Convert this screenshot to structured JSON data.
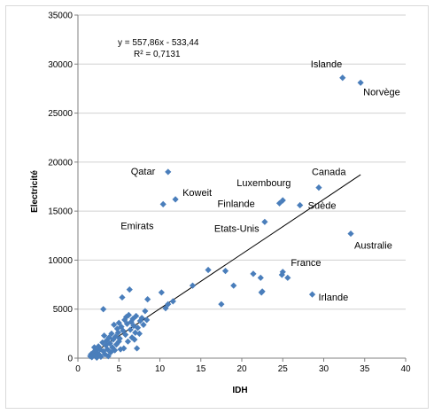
{
  "chart_data": {
    "type": "scatter",
    "title": "",
    "xlabel": "IDH",
    "ylabel": "Electricité",
    "xlim": [
      0,
      40
    ],
    "ylim": [
      0,
      35000
    ],
    "x_ticks": [
      "0",
      "5",
      "10",
      "15",
      "20",
      "25",
      "30",
      "35",
      "40"
    ],
    "y_ticks": [
      "0",
      "5000",
      "10000",
      "15000",
      "20000",
      "25000",
      "30000",
      "35000"
    ],
    "grid": "horizontal",
    "legend": "none",
    "marker_color": "#4a7ebb",
    "trendline": {
      "equation": "y = 557,86x - 533,44",
      "r2": "R² = 0,7131",
      "slope": 557.86,
      "intercept": -533.44,
      "x_range": [
        1.5,
        34.5
      ],
      "color": "#000000"
    },
    "labeled_points": [
      {
        "label": "Islande",
        "x": 32.3,
        "y": 28600
      },
      {
        "label": "Norvège",
        "x": 34.5,
        "y": 28100
      },
      {
        "label": "Qatar",
        "x": 11.0,
        "y": 19000
      },
      {
        "label": "Koweit",
        "x": 11.9,
        "y": 16200
      },
      {
        "label": "Emirats",
        "x": 10.4,
        "y": 15700
      },
      {
        "label": "Luxembourg",
        "x": 25.0,
        "y": 16100
      },
      {
        "label": "Finlande",
        "x": 24.6,
        "y": 15800
      },
      {
        "label": "Canada",
        "x": 29.4,
        "y": 17400
      },
      {
        "label": "Suède",
        "x": 27.1,
        "y": 15600
      },
      {
        "label": "Etats-Unis",
        "x": 22.8,
        "y": 13900
      },
      {
        "label": "Australie",
        "x": 33.3,
        "y": 12700
      },
      {
        "label": "France",
        "x": 24.9,
        "y": 8500
      },
      {
        "label": "Irlande",
        "x": 28.6,
        "y": 6500
      }
    ],
    "points": [
      [
        1.5,
        200
      ],
      [
        1.6,
        400
      ],
      [
        1.7,
        100
      ],
      [
        1.8,
        300
      ],
      [
        1.9,
        600
      ],
      [
        2.0,
        1100
      ],
      [
        2.1,
        250
      ],
      [
        2.2,
        800
      ],
      [
        2.3,
        50
      ],
      [
        2.4,
        500
      ],
      [
        2.5,
        1200
      ],
      [
        2.6,
        350
      ],
      [
        2.7,
        900
      ],
      [
        2.8,
        150
      ],
      [
        3.0,
        1600
      ],
      [
        3.1,
        700
      ],
      [
        3.2,
        2300
      ],
      [
        3.1,
        5000
      ],
      [
        3.3,
        400
      ],
      [
        3.4,
        1300
      ],
      [
        3.5,
        1800
      ],
      [
        3.6,
        900
      ],
      [
        3.7,
        200
      ],
      [
        3.8,
        2100
      ],
      [
        3.9,
        1500
      ],
      [
        4.0,
        600
      ],
      [
        4.1,
        2500
      ],
      [
        4.2,
        1100
      ],
      [
        4.3,
        1900
      ],
      [
        4.4,
        3400
      ],
      [
        4.5,
        800
      ],
      [
        4.6,
        2200
      ],
      [
        4.7,
        1400
      ],
      [
        4.8,
        3000
      ],
      [
        4.9,
        2600
      ],
      [
        5.0,
        1700
      ],
      [
        5.0,
        3600
      ],
      [
        5.1,
        2000
      ],
      [
        5.2,
        900
      ],
      [
        5.3,
        3200
      ],
      [
        5.4,
        6200
      ],
      [
        5.5,
        2800
      ],
      [
        5.6,
        1000
      ],
      [
        5.7,
        3900
      ],
      [
        5.8,
        2400
      ],
      [
        5.9,
        4200
      ],
      [
        6.0,
        3500
      ],
      [
        6.1,
        1700
      ],
      [
        6.2,
        4400
      ],
      [
        6.3,
        7000
      ],
      [
        6.4,
        2900
      ],
      [
        6.5,
        3700
      ],
      [
        6.6,
        2100
      ],
      [
        6.7,
        4000
      ],
      [
        6.8,
        3300
      ],
      [
        6.9,
        1900
      ],
      [
        7.0,
        2600
      ],
      [
        7.1,
        4300
      ],
      [
        7.2,
        1000
      ],
      [
        7.3,
        3100
      ],
      [
        7.5,
        2500
      ],
      [
        7.6,
        3800
      ],
      [
        7.8,
        4100
      ],
      [
        8.0,
        3400
      ],
      [
        8.2,
        4800
      ],
      [
        8.4,
        3900
      ],
      [
        8.5,
        6000
      ],
      [
        10.2,
        6700
      ],
      [
        10.7,
        5100
      ],
      [
        11.0,
        5500
      ],
      [
        11.6,
        5800
      ],
      [
        14.0,
        7400
      ],
      [
        15.9,
        9000
      ],
      [
        17.5,
        5500
      ],
      [
        18.0,
        8900
      ],
      [
        19.0,
        7400
      ],
      [
        21.4,
        8600
      ],
      [
        22.3,
        8200
      ],
      [
        22.4,
        6700
      ],
      [
        22.5,
        6800
      ],
      [
        25.0,
        8800
      ],
      [
        25.6,
        8200
      ]
    ]
  }
}
